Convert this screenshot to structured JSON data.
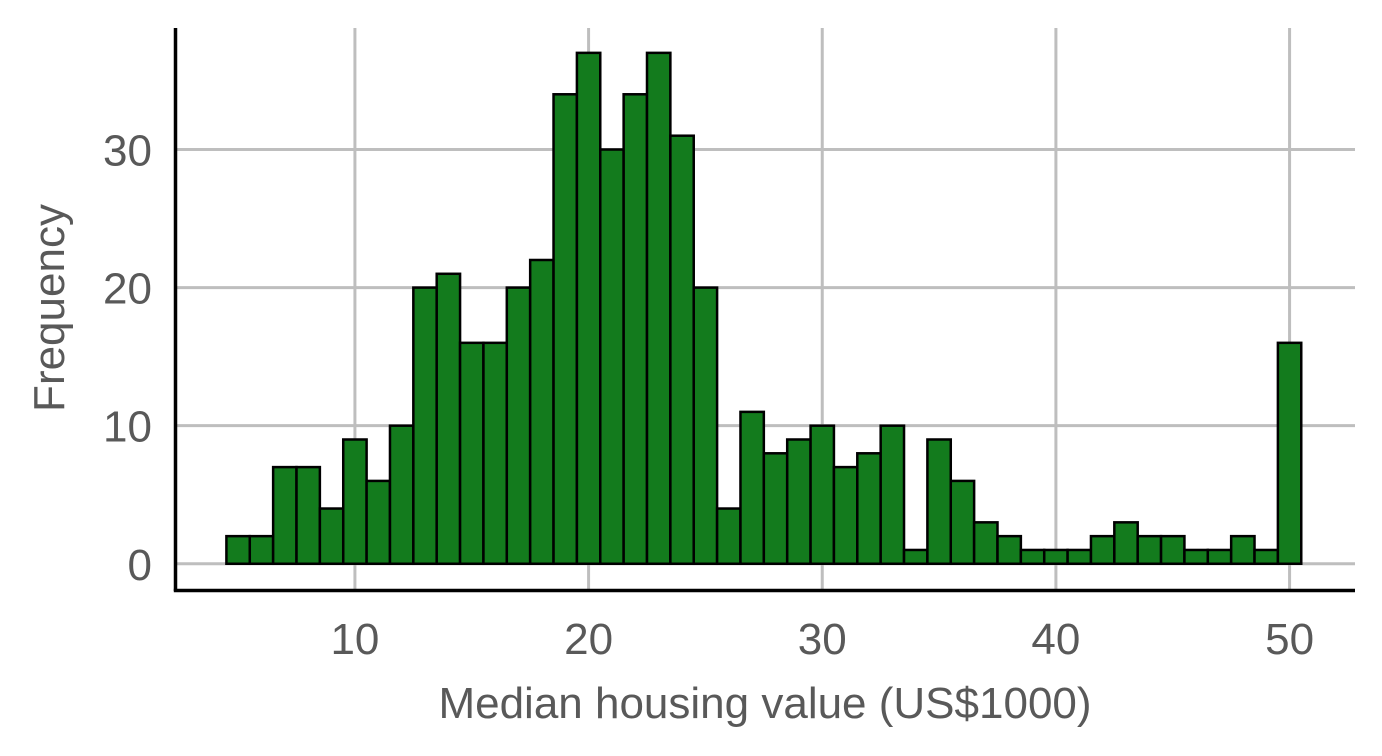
{
  "chart_data": {
    "type": "bar",
    "subtype": "histogram",
    "xlabel": "Median housing value (US$1000)",
    "ylabel": "Frequency",
    "bin_width": 1,
    "first_bin_start": 4.5,
    "values": [
      2,
      2,
      7,
      7,
      4,
      9,
      6,
      10,
      20,
      21,
      16,
      16,
      20,
      22,
      34,
      37,
      30,
      34,
      37,
      31,
      20,
      4,
      11,
      8,
      9,
      10,
      7,
      8,
      10,
      1,
      9,
      6,
      3,
      2,
      1,
      1,
      1,
      2,
      3,
      2,
      2,
      1,
      1,
      2,
      1,
      16
    ],
    "xlim": [
      2.3,
      52.8
    ],
    "ylim": [
      -1.9,
      38.8
    ],
    "x_ticks": [
      10,
      20,
      30,
      40,
      50
    ],
    "x_tick_labels": [
      "10",
      "20",
      "30",
      "40",
      "50"
    ],
    "y_ticks": [
      0,
      10,
      20,
      30
    ],
    "y_tick_labels": [
      "0",
      "10",
      "20",
      "30"
    ],
    "grid": true,
    "legend": "none",
    "colors": {
      "bar_fill": "#137b1d",
      "bar_edge": "#000000",
      "grid": "#bebebe",
      "axis": "#000000",
      "text": "#595959"
    }
  }
}
